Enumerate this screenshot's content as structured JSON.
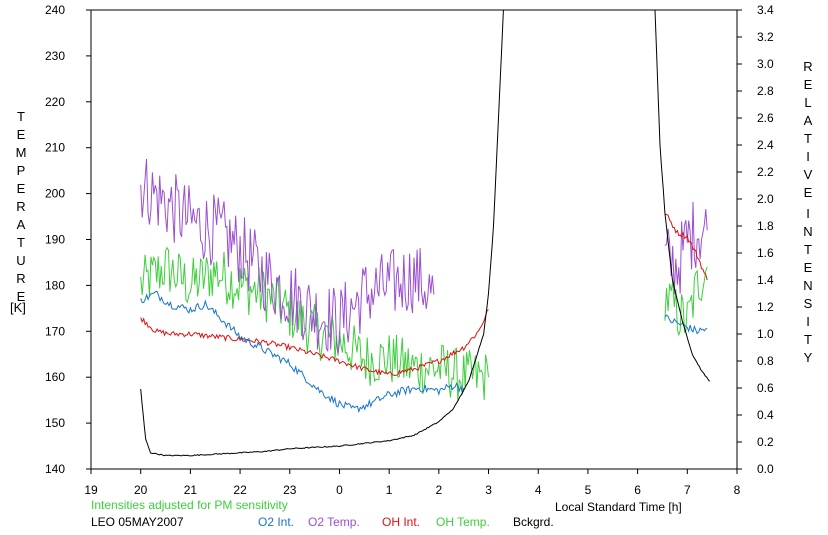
{
  "chart_data": {
    "type": "line",
    "left_axis_title": "TEMPERATURE",
    "left_axis_unit": "[K]",
    "right_axis_title_line1": "RELATIVE",
    "right_axis_title_line2": "INTENSITY",
    "xlabel": "Local Standard Time [h]",
    "note": "Intensities adjusted for PM sensitivity",
    "station": "LEO 05MAY2007",
    "x_ticks": [
      "19",
      "20",
      "21",
      "22",
      "23",
      "0",
      "1",
      "2",
      "3",
      "4",
      "5",
      "6",
      "7",
      "8"
    ],
    "x_domain": [
      19,
      32
    ],
    "y_left_ticks": [
      "140",
      "150",
      "160",
      "170",
      "180",
      "190",
      "200",
      "210",
      "220",
      "230",
      "240"
    ],
    "y_left_range": [
      140,
      240
    ],
    "y_right_ticks": [
      "0.0",
      "0.2",
      "0.4",
      "0.6",
      "0.8",
      "1.0",
      "1.2",
      "1.4",
      "1.6",
      "1.8",
      "2.0",
      "2.2",
      "2.4",
      "2.6",
      "2.8",
      "3.0",
      "3.2",
      "3.4"
    ],
    "y_right_range": [
      0,
      3.4
    ],
    "grid": false,
    "legend_placement": "bottom",
    "series": [
      {
        "name": "O2 Int.",
        "axis": "right",
        "color": "#1874cd",
        "noise": 0.03,
        "segments": [
          [
            [
              20.0,
              1.25
            ],
            [
              20.3,
              1.3
            ],
            [
              20.6,
              1.22
            ],
            [
              21.0,
              1.18
            ],
            [
              21.3,
              1.22
            ],
            [
              21.6,
              1.12
            ],
            [
              22.0,
              0.98
            ],
            [
              22.3,
              0.92
            ],
            [
              22.6,
              0.86
            ],
            [
              23.0,
              0.78
            ],
            [
              23.3,
              0.68
            ],
            [
              23.6,
              0.58
            ],
            [
              24.0,
              0.48
            ],
            [
              24.3,
              0.44
            ],
            [
              24.6,
              0.48
            ],
            [
              25.0,
              0.55
            ],
            [
              25.3,
              0.58
            ],
            [
              25.6,
              0.6
            ],
            [
              26.0,
              0.58
            ],
            [
              26.3,
              0.62
            ],
            [
              26.5,
              0.6
            ]
          ],
          [
            [
              30.55,
              1.12
            ],
            [
              30.8,
              1.08
            ],
            [
              31.0,
              1.05
            ],
            [
              31.2,
              1.02
            ],
            [
              31.4,
              1.04
            ]
          ]
        ]
      },
      {
        "name": "O2 Temp.",
        "axis": "left",
        "color": "#9b4fd0",
        "noise": 8,
        "segments": [
          [
            [
              20.0,
              202
            ],
            [
              20.5,
              198
            ],
            [
              21.0,
              194
            ],
            [
              21.5,
              192
            ],
            [
              22.0,
              188
            ],
            [
              22.5,
              182
            ],
            [
              23.0,
              178
            ],
            [
              23.5,
              174
            ],
            [
              24.0,
              172
            ],
            [
              24.5,
              178
            ],
            [
              25.0,
              180
            ],
            [
              25.5,
              182
            ],
            [
              25.9,
              178
            ]
          ],
          [
            [
              30.55,
              186
            ],
            [
              30.8,
              184
            ],
            [
              31.0,
              190
            ],
            [
              31.2,
              192
            ],
            [
              31.4,
              192
            ]
          ]
        ]
      },
      {
        "name": "OH Int.",
        "axis": "right",
        "color": "#e01010",
        "noise": 0.02,
        "segments": [
          [
            [
              20.0,
              1.12
            ],
            [
              20.3,
              1.02
            ],
            [
              20.6,
              1.0
            ],
            [
              21.0,
              1.0
            ],
            [
              21.5,
              0.98
            ],
            [
              22.0,
              0.96
            ],
            [
              22.5,
              0.94
            ],
            [
              23.0,
              0.9
            ],
            [
              23.5,
              0.85
            ],
            [
              24.0,
              0.8
            ],
            [
              24.5,
              0.74
            ],
            [
              25.0,
              0.7
            ],
            [
              25.5,
              0.74
            ],
            [
              26.0,
              0.8
            ],
            [
              26.5,
              0.9
            ],
            [
              26.8,
              1.02
            ],
            [
              27.0,
              1.18
            ]
          ],
          [
            [
              30.55,
              1.9
            ],
            [
              30.8,
              1.75
            ],
            [
              31.0,
              1.72
            ],
            [
              31.2,
              1.58
            ],
            [
              31.4,
              1.4
            ]
          ]
        ]
      },
      {
        "name": "OH Temp.",
        "axis": "left",
        "color": "#3ccf3c",
        "noise": 6,
        "segments": [
          [
            [
              20.0,
              180
            ],
            [
              20.5,
              184
            ],
            [
              21.0,
              180
            ],
            [
              21.5,
              183
            ],
            [
              22.0,
              180
            ],
            [
              22.5,
              178
            ],
            [
              23.0,
              174
            ],
            [
              23.5,
              170
            ],
            [
              24.0,
              168
            ],
            [
              24.5,
              164
            ],
            [
              25.0,
              164
            ],
            [
              25.5,
              162
            ],
            [
              26.0,
              162
            ],
            [
              26.5,
              160
            ],
            [
              27.0,
              160
            ]
          ],
          [
            [
              30.55,
              178
            ],
            [
              30.8,
              174
            ],
            [
              31.0,
              172
            ],
            [
              31.2,
              180
            ],
            [
              31.4,
              184
            ]
          ]
        ]
      },
      {
        "name": "Bckgrd.",
        "axis": "right",
        "color": "#000000",
        "noise": 0.004,
        "segments": [
          [
            [
              20.0,
              0.59
            ],
            [
              20.05,
              0.4
            ],
            [
              20.1,
              0.22
            ],
            [
              20.2,
              0.12
            ],
            [
              20.5,
              0.1
            ],
            [
              21.0,
              0.1
            ],
            [
              21.5,
              0.11
            ],
            [
              22.0,
              0.12
            ],
            [
              22.5,
              0.13
            ],
            [
              23.0,
              0.15
            ],
            [
              23.5,
              0.16
            ],
            [
              24.0,
              0.17
            ],
            [
              24.5,
              0.19
            ],
            [
              25.0,
              0.21
            ],
            [
              25.5,
              0.25
            ],
            [
              26.0,
              0.35
            ],
            [
              26.3,
              0.45
            ],
            [
              26.6,
              0.65
            ],
            [
              26.9,
              1.0
            ],
            [
              27.0,
              1.3
            ],
            [
              27.1,
              1.8
            ],
            [
              27.2,
              2.6
            ],
            [
              27.3,
              3.4
            ]
          ],
          [
            [
              30.35,
              3.4
            ],
            [
              30.45,
              2.4
            ],
            [
              30.55,
              1.9
            ],
            [
              30.7,
              1.4
            ],
            [
              30.9,
              1.1
            ],
            [
              31.1,
              0.85
            ],
            [
              31.3,
              0.72
            ],
            [
              31.45,
              0.65
            ]
          ]
        ]
      }
    ]
  }
}
